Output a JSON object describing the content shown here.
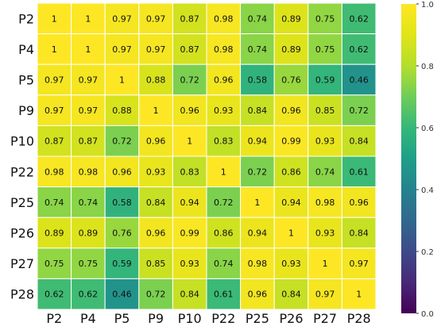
{
  "chart_data": {
    "type": "heatmap",
    "title": "",
    "xlabel": "",
    "ylabel": "",
    "row_labels": [
      "P2",
      "P4",
      "P5",
      "P9",
      "P10",
      "P22",
      "P25",
      "P26",
      "P27",
      "P28"
    ],
    "col_labels": [
      "P2",
      "P4",
      "P5",
      "P9",
      "P10",
      "P22",
      "P25",
      "P26",
      "P27",
      "P28"
    ],
    "values": [
      [
        1,
        1,
        0.97,
        0.97,
        0.87,
        0.98,
        0.74,
        0.89,
        0.75,
        0.62
      ],
      [
        1,
        1,
        0.97,
        0.97,
        0.87,
        0.98,
        0.74,
        0.89,
        0.75,
        0.62
      ],
      [
        0.97,
        0.97,
        1,
        0.88,
        0.72,
        0.96,
        0.58,
        0.76,
        0.59,
        0.46
      ],
      [
        0.97,
        0.97,
        0.88,
        1,
        0.96,
        0.93,
        0.84,
        0.96,
        0.85,
        0.72
      ],
      [
        0.87,
        0.87,
        0.72,
        0.96,
        1,
        0.83,
        0.94,
        0.99,
        0.93,
        0.84
      ],
      [
        0.98,
        0.98,
        0.96,
        0.93,
        0.83,
        1,
        0.72,
        0.86,
        0.74,
        0.61
      ],
      [
        0.74,
        0.74,
        0.58,
        0.84,
        0.94,
        0.72,
        1,
        0.94,
        0.98,
        0.96
      ],
      [
        0.89,
        0.89,
        0.76,
        0.96,
        0.99,
        0.86,
        0.94,
        1,
        0.93,
        0.84
      ],
      [
        0.75,
        0.75,
        0.59,
        0.85,
        0.93,
        0.74,
        0.98,
        0.93,
        1,
        0.97
      ],
      [
        0.62,
        0.62,
        0.46,
        0.72,
        0.84,
        0.61,
        0.96,
        0.84,
        0.97,
        1
      ]
    ],
    "value_labels": [
      [
        "1",
        "1",
        "0.97",
        "0.97",
        "0.87",
        "0.98",
        "0.74",
        "0.89",
        "0.75",
        "0.62"
      ],
      [
        "1",
        "1",
        "0.97",
        "0.97",
        "0.87",
        "0.98",
        "0.74",
        "0.89",
        "0.75",
        "0.62"
      ],
      [
        "0.97",
        "0.97",
        "1",
        "0.88",
        "0.72",
        "0.96",
        "0.58",
        "0.76",
        "0.59",
        "0.46"
      ],
      [
        "0.97",
        "0.97",
        "0.88",
        "1",
        "0.96",
        "0.93",
        "0.84",
        "0.96",
        "0.85",
        "0.72"
      ],
      [
        "0.87",
        "0.87",
        "0.72",
        "0.96",
        "1",
        "0.83",
        "0.94",
        "0.99",
        "0.93",
        "0.84"
      ],
      [
        "0.98",
        "0.98",
        "0.96",
        "0.93",
        "0.83",
        "1",
        "0.72",
        "0.86",
        "0.74",
        "0.61"
      ],
      [
        "0.74",
        "0.74",
        "0.58",
        "0.84",
        "0.94",
        "0.72",
        "1",
        "0.94",
        "0.98",
        "0.96"
      ],
      [
        "0.89",
        "0.89",
        "0.76",
        "0.96",
        "0.99",
        "0.86",
        "0.94",
        "1",
        "0.93",
        "0.84"
      ],
      [
        "0.75",
        "0.75",
        "0.59",
        "0.85",
        "0.93",
        "0.74",
        "0.98",
        "0.93",
        "1",
        "0.97"
      ],
      [
        "0.62",
        "0.62",
        "0.46",
        "0.72",
        "0.84",
        "0.61",
        "0.96",
        "0.84",
        "0.97",
        "1"
      ]
    ],
    "colormap": "viridis",
    "vmin": 0.0,
    "vmax": 1.0,
    "colorbar_ticks": [
      "0.0",
      "0.2",
      "0.4",
      "0.6",
      "0.8",
      "1.0"
    ],
    "grid": true,
    "grid_color": "#ffffff",
    "annotation_color": "#111111"
  }
}
